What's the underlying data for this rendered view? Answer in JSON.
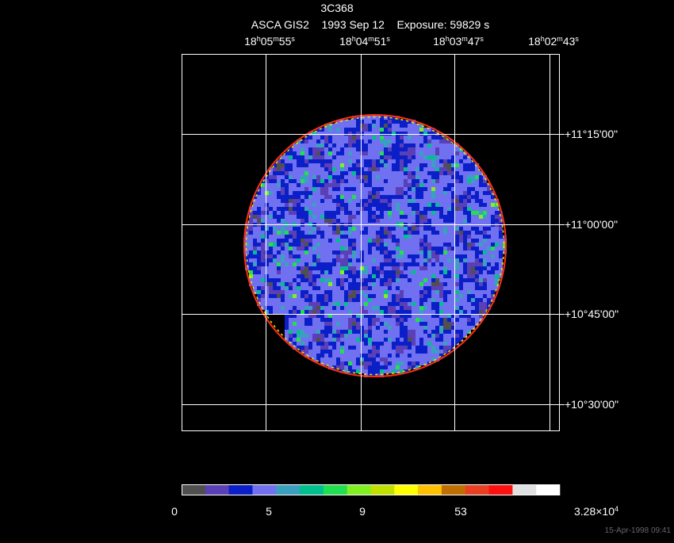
{
  "header": {
    "title": "3C368",
    "subtitle": "ASCA GIS2    1993 Sep 12    Exposure: 59829 s"
  },
  "ra_labels": [
    {
      "parts": [
        "18",
        "h",
        "05",
        "m",
        "55",
        "s"
      ]
    },
    {
      "parts": [
        "18",
        "h",
        "04",
        "m",
        "51",
        "s"
      ]
    },
    {
      "parts": [
        "18",
        "h",
        "03",
        "m",
        "47",
        "s"
      ]
    },
    {
      "parts": [
        "18",
        "h",
        "02",
        "m",
        "43",
        "s"
      ]
    }
  ],
  "dec_labels": [
    "+11°15'00\"",
    "+11°00'00\"",
    "+10°45'00\"",
    "+10°30'00\""
  ],
  "colorbar": {
    "colors": [
      "#505050",
      "#5b3fb6",
      "#0a1fc8",
      "#7070f0",
      "#3aa0c0",
      "#00c090",
      "#20e050",
      "#80f020",
      "#c0e000",
      "#ffff00",
      "#ffc000",
      "#c07000",
      "#e84020",
      "#ff1010",
      "#e0e0e0",
      "#ffffff"
    ],
    "labels": [
      {
        "parts": [
          "0"
        ]
      },
      {
        "parts": [
          "5"
        ]
      },
      {
        "parts": [
          "9"
        ]
      },
      {
        "parts": [
          "53"
        ]
      },
      {
        "parts": [
          "3.28×10",
          "4"
        ]
      }
    ]
  },
  "footer": {
    "timestamp": "15-Apr-1998 09:41"
  }
}
